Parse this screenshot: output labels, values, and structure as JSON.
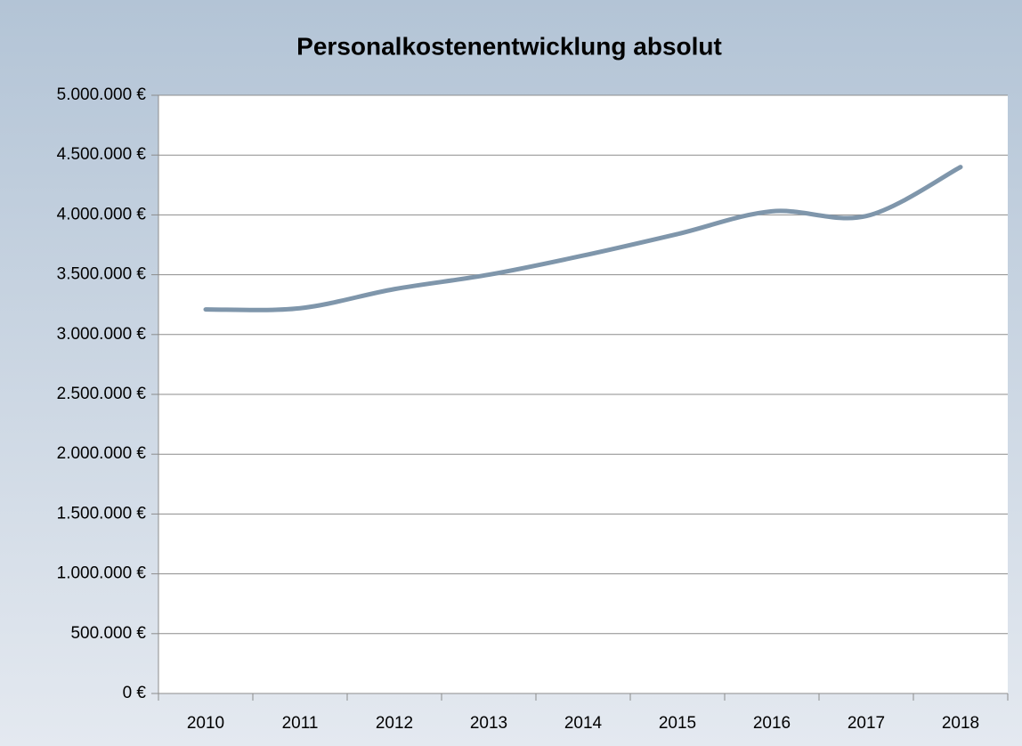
{
  "chart_data": {
    "type": "line",
    "title": "Personalkostenentwicklung absolut",
    "categories": [
      "2010",
      "2011",
      "2012",
      "2013",
      "2014",
      "2015",
      "2016",
      "2017",
      "2018"
    ],
    "series": [
      {
        "color": "#7f96ab",
        "values": [
          3210000,
          3220000,
          3380000,
          3500000,
          3660000,
          3840000,
          4030000,
          3990000,
          4400000
        ]
      }
    ],
    "ylim": [
      0,
      5000000
    ],
    "yticks": [
      {
        "value": 0,
        "label": "0 €"
      },
      {
        "value": 500000,
        "label": "500.000 €"
      },
      {
        "value": 1000000,
        "label": "1.000.000 €"
      },
      {
        "value": 1500000,
        "label": "1.500.000 €"
      },
      {
        "value": 2000000,
        "label": "2.000.000 €"
      },
      {
        "value": 2500000,
        "label": "2.500.000 €"
      },
      {
        "value": 3000000,
        "label": "3.000.000 €"
      },
      {
        "value": 3500000,
        "label": "3.500.000 €"
      },
      {
        "value": 4000000,
        "label": "4.000.000 €"
      },
      {
        "value": 4500000,
        "label": "4.500.000 €"
      },
      {
        "value": 5000000,
        "label": "5.000.000 €"
      }
    ],
    "grid": true,
    "smooth": true
  }
}
